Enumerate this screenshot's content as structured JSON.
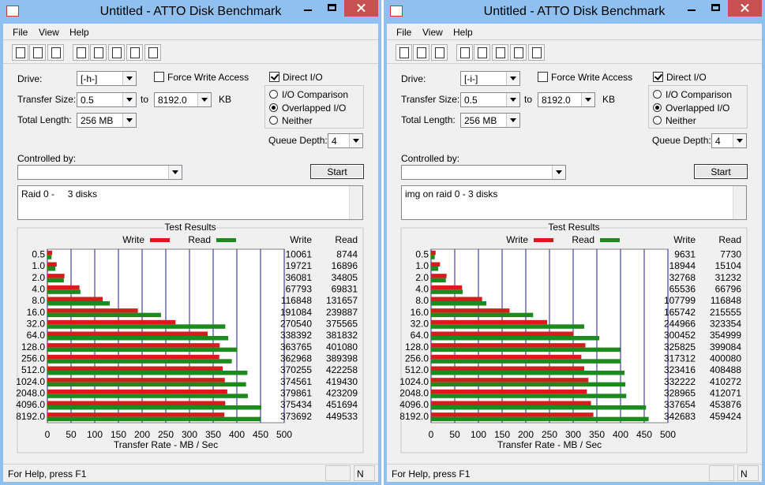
{
  "windows": [
    {
      "title": "Untitled - ATTO Disk Benchmark",
      "menu": [
        "File",
        "View",
        "Help"
      ],
      "form": {
        "drive_label": "Drive:",
        "drive": "[-h-]",
        "force_write": "Force Write Access",
        "force_write_checked": false,
        "direct_io": "Direct I/O",
        "direct_io_checked": true,
        "transfer_size_label": "Transfer Size:",
        "transfer_from": "0.5",
        "to": "to",
        "transfer_to": "8192.0",
        "kb": "KB",
        "total_length_label": "Total Length:",
        "total_length": "256 MB",
        "modes": [
          "I/O Comparison",
          "Overlapped I/O",
          "Neither"
        ],
        "selected_mode": 1,
        "queue_depth_label": "Queue Depth:",
        "queue_depth": "4",
        "controlled_by_label": "Controlled by:",
        "start": "Start",
        "description": "Raid 0 -     3 disks"
      },
      "chart_data": {
        "type": "bar",
        "title": "Test Results",
        "x_label": "Transfer Rate - MB / Sec",
        "categories": [
          "0.5",
          "1.0",
          "2.0",
          "4.0",
          "8.0",
          "16.0",
          "32.0",
          "64.0",
          "128.0",
          "256.0",
          "512.0",
          "1024.0",
          "2048.0",
          "4096.0",
          "8192.0"
        ],
        "series": [
          {
            "name": "Write",
            "color": "#d61c1c",
            "values": [
              10061,
              19721,
              36081,
              67793,
              116848,
              191084,
              270540,
              338392,
              363765,
              362968,
              370255,
              374561,
              379861,
              375434,
              373692
            ]
          },
          {
            "name": "Read",
            "color": "#1c8a1c",
            "values": [
              8744,
              16896,
              34805,
              69831,
              131657,
              239887,
              375565,
              381832,
              401080,
              389398,
              422258,
              419430,
              423209,
              451694,
              449533
            ]
          }
        ],
        "xlim": [
          0,
          500000
        ],
        "xticks": [
          0,
          {
            "value": 50000,
            "label": "50"
          },
          {
            "value": 100000,
            "label": "100"
          },
          {
            "value": 150000,
            "label": "150"
          },
          {
            "value": 200000,
            "label": "200"
          },
          {
            "value": 250000,
            "label": "250"
          },
          {
            "value": 300000,
            "label": "300"
          },
          {
            "value": 350000,
            "label": "350"
          },
          {
            "value": 400000,
            "label": "400"
          },
          {
            "value": 450000,
            "label": "450"
          },
          {
            "value": 500000,
            "label": "500"
          }
        ],
        "grid": true
      },
      "status": "For Help, press F1",
      "status_indicator": "N"
    },
    {
      "title": "Untitled - ATTO Disk Benchmark",
      "menu": [
        "File",
        "View",
        "Help"
      ],
      "form": {
        "drive_label": "Drive:",
        "drive": "[-i-]",
        "force_write": "Force Write Access",
        "force_write_checked": false,
        "direct_io": "Direct I/O",
        "direct_io_checked": true,
        "transfer_size_label": "Transfer Size:",
        "transfer_from": "0.5",
        "to": "to",
        "transfer_to": "8192.0",
        "kb": "KB",
        "total_length_label": "Total Length:",
        "total_length": "256 MB",
        "modes": [
          "I/O Comparison",
          "Overlapped I/O",
          "Neither"
        ],
        "selected_mode": 1,
        "queue_depth_label": "Queue Depth:",
        "queue_depth": "4",
        "controlled_by_label": "Controlled by:",
        "start": "Start",
        "description": "img on raid 0 - 3 disks"
      },
      "chart_data": {
        "type": "bar",
        "title": "Test Results",
        "x_label": "Transfer Rate - MB / Sec",
        "categories": [
          "0.5",
          "1.0",
          "2.0",
          "4.0",
          "8.0",
          "16.0",
          "32.0",
          "64.0",
          "128.0",
          "256.0",
          "512.0",
          "1024.0",
          "2048.0",
          "4096.0",
          "8192.0"
        ],
        "series": [
          {
            "name": "Write",
            "color": "#d61c1c",
            "values": [
              9631,
              18944,
              32768,
              65536,
              107799,
              165742,
              244966,
              300452,
              325825,
              317312,
              323416,
              332222,
              328965,
              337654,
              342683
            ]
          },
          {
            "name": "Read",
            "color": "#1c8a1c",
            "values": [
              7730,
              15104,
              31232,
              66796,
              116848,
              215555,
              323354,
              354999,
              399084,
              400080,
              408488,
              410272,
              412071,
              453876,
              459424
            ]
          }
        ],
        "xlim": [
          0,
          500000
        ],
        "xticks": [
          0,
          {
            "value": 50000,
            "label": "50"
          },
          {
            "value": 100000,
            "label": "100"
          },
          {
            "value": 150000,
            "label": "150"
          },
          {
            "value": 200000,
            "label": "200"
          },
          {
            "value": 250000,
            "label": "250"
          },
          {
            "value": 300000,
            "label": "300"
          },
          {
            "value": 350000,
            "label": "350"
          },
          {
            "value": 400000,
            "label": "400"
          },
          {
            "value": 450000,
            "label": "450"
          },
          {
            "value": 500000,
            "label": "500"
          }
        ],
        "grid": true
      },
      "status": "For Help, press F1",
      "status_indicator": "N"
    }
  ]
}
